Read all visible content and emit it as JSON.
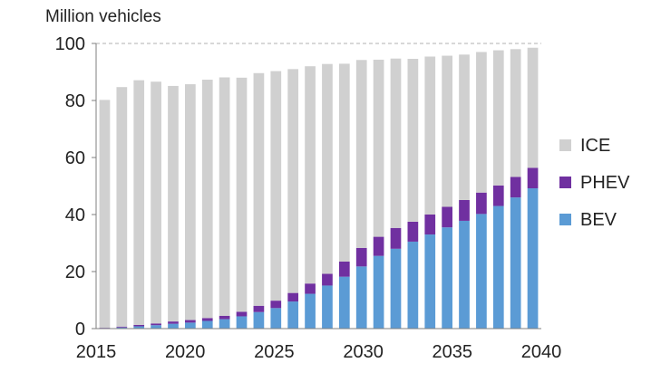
{
  "chart_data": {
    "type": "bar",
    "stacked": true,
    "title": "",
    "ylabel": "Million vehicles",
    "xlabel": "",
    "ylim": [
      0,
      100
    ],
    "yticks": [
      0,
      20,
      40,
      60,
      80,
      100
    ],
    "xtick_labels": [
      "2015",
      "2020",
      "2025",
      "2030",
      "2035",
      "2040"
    ],
    "grid": "dashed line at 100 only",
    "legend_position": "right",
    "categories": [
      "2015",
      "2016",
      "2017",
      "2018",
      "2019",
      "2020",
      "2021",
      "2022",
      "2023",
      "2024",
      "2025",
      "2026",
      "2027",
      "2028",
      "2029",
      "2030",
      "2031",
      "2032",
      "2033",
      "2034",
      "2035",
      "2036",
      "2037",
      "2038",
      "2039",
      "2040"
    ],
    "series": [
      {
        "name": "BEV",
        "color": "#5b9bd5",
        "values": [
          0.2,
          0.4,
          0.8,
          1.2,
          1.7,
          2.1,
          2.7,
          3.3,
          4.3,
          5.8,
          7.2,
          9.5,
          12.2,
          15.1,
          18.2,
          21.8,
          25.5,
          28.0,
          30.5,
          33.0,
          35.5,
          37.8,
          40.2,
          43.0,
          46.0,
          49.2
        ]
      },
      {
        "name": "PHEV",
        "color": "#7030a0",
        "values": [
          0.1,
          0.3,
          0.5,
          0.6,
          0.8,
          0.9,
          1.0,
          1.2,
          1.6,
          2.2,
          2.6,
          3.0,
          3.6,
          4.1,
          5.3,
          6.5,
          6.7,
          7.3,
          7.0,
          7.0,
          7.2,
          7.3,
          7.5,
          7.2,
          7.2,
          7.2
        ]
      },
      {
        "name": "ICE",
        "color": "#d0d0d0",
        "values": [
          79.9,
          84.0,
          85.8,
          84.8,
          82.6,
          82.7,
          83.6,
          83.6,
          82.1,
          81.6,
          80.5,
          78.5,
          76.2,
          73.6,
          69.4,
          65.9,
          62.1,
          59.4,
          57.1,
          55.4,
          53.0,
          51.0,
          49.3,
          47.4,
          44.8,
          42.1
        ]
      }
    ],
    "legend": [
      {
        "label": "ICE",
        "color": "#d0d0d0"
      },
      {
        "label": "PHEV",
        "color": "#7030a0"
      },
      {
        "label": "BEV",
        "color": "#5b9bd5"
      }
    ]
  }
}
